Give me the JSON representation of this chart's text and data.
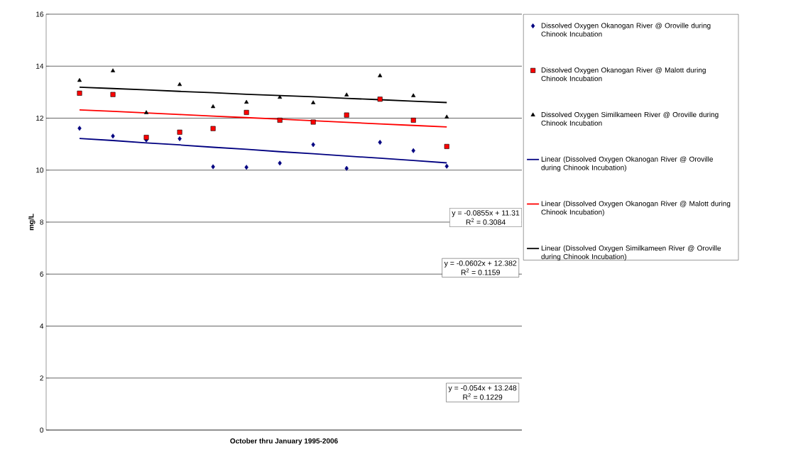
{
  "chart_data": {
    "type": "scatter",
    "xlabel": "October thru January 1995-2006",
    "ylabel": "mg/L",
    "categories": [
      null,
      null,
      null,
      null,
      null,
      null,
      null,
      null,
      null,
      null,
      null,
      null
    ],
    "ylim": [
      0,
      16
    ],
    "yticks": [
      0,
      2,
      4,
      6,
      8,
      10,
      12,
      14,
      16
    ],
    "grid": "y",
    "legend": "right",
    "tick_labels": "y",
    "series": [
      {
        "name": "Dissolved Oxygen Okanogan River @ Oroville during Chinook Incubation",
        "color": "#000080",
        "marker": "diamond",
        "values": [
          11.61,
          11.31,
          11.16,
          11.21,
          10.13,
          10.11,
          10.27,
          10.98,
          10.07,
          11.07,
          10.75,
          10.15
        ]
      },
      {
        "name": "Dissolved Oxygen Okanogan River @ Malott during Chinook Incubation",
        "color": "#ff0000",
        "marker": "square",
        "values": [
          12.96,
          12.91,
          11.26,
          11.46,
          11.6,
          12.22,
          11.92,
          11.85,
          12.12,
          12.73,
          11.92,
          10.91
        ]
      },
      {
        "name": "Dissolved Oxygen Similkameen River @ Oroville during Chinook Incubation",
        "color": "#000000",
        "marker": "triangle",
        "values": [
          13.45,
          13.82,
          12.21,
          13.29,
          12.44,
          12.61,
          12.8,
          12.59,
          12.89,
          13.63,
          12.86,
          12.04
        ]
      },
      {
        "name": "Linear (Dissolved Oxygen Okanogan River @ Oroville during Chinook Incubation)",
        "type": "line",
        "color": "#000080",
        "values": [
          11.22,
          11.14,
          11.05,
          10.97,
          10.88,
          10.8,
          10.71,
          10.63,
          10.54,
          10.46,
          10.37,
          10.28
        ]
      },
      {
        "name": "Linear (Dissolved Oxygen Okanogan River @ Malott during Chinook Incubation)",
        "type": "line",
        "color": "#ff0000",
        "values": [
          12.32,
          12.26,
          12.2,
          12.14,
          12.08,
          12.02,
          11.96,
          11.9,
          11.84,
          11.78,
          11.72,
          11.66
        ]
      },
      {
        "name": "Linear (Dissolved Oxygen Similkameen River @  Oroville during Chinook Incubation)",
        "type": "line",
        "color": "#000000",
        "values": [
          13.19,
          13.14,
          13.09,
          13.03,
          12.98,
          12.92,
          12.87,
          12.82,
          12.76,
          12.71,
          12.65,
          12.6
        ]
      }
    ],
    "annotations": [
      "y = -0.0855x + 11.31",
      "R$^{2}$ = 0.3084",
      "y = -0.0602x + 12.382",
      "R$^{2}$ = 0.1159",
      "y = -0.054x + 13.248",
      "R$^{2}$ = 0.1229"
    ]
  }
}
